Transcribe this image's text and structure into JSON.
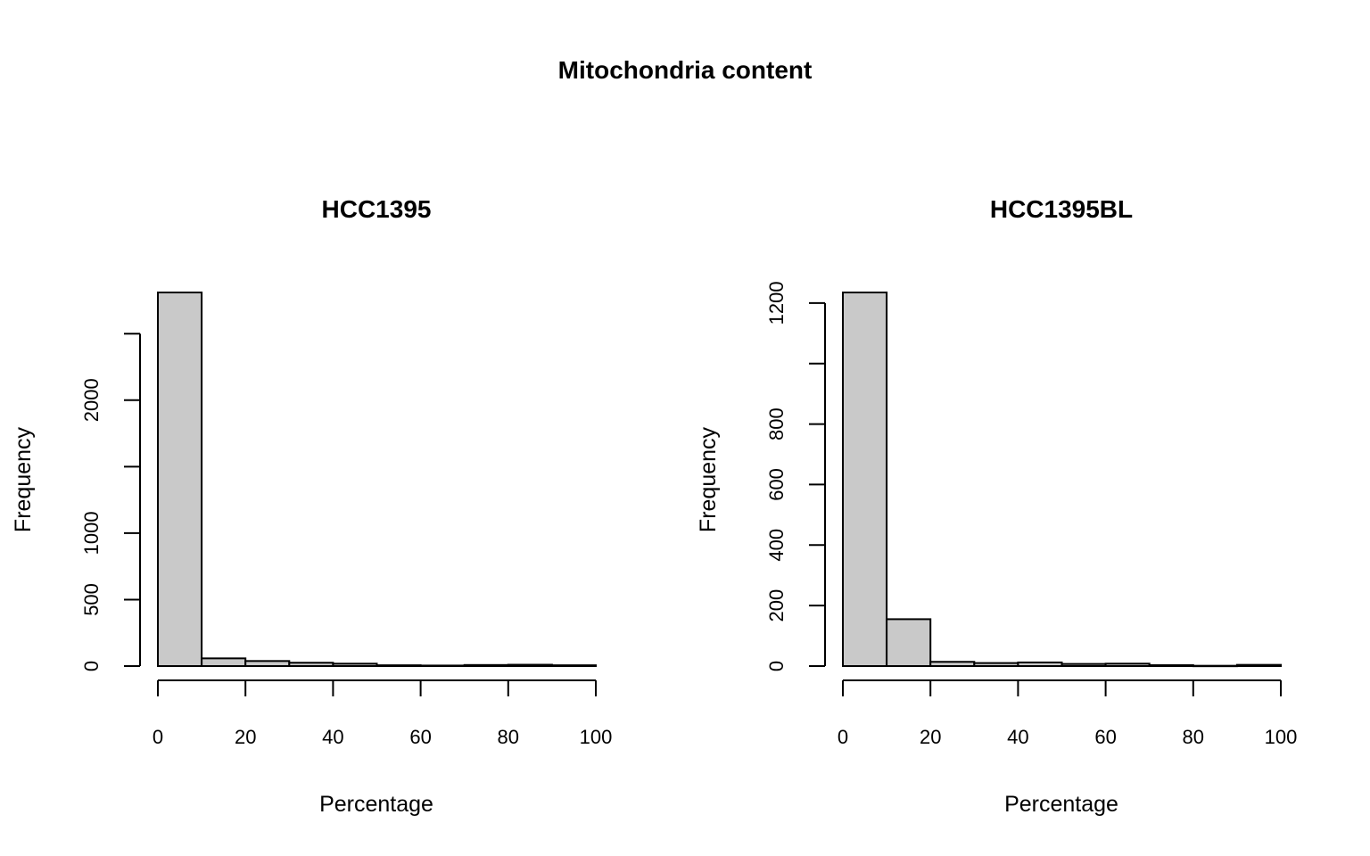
{
  "figure": {
    "title": "Mitochondria content"
  },
  "chart_data": [
    {
      "type": "bar",
      "title": "HCC1395",
      "xlabel": "Percentage",
      "ylabel": "Frequency",
      "bin_edges": [
        0,
        10,
        20,
        30,
        40,
        50,
        60,
        70,
        80,
        90,
        100
      ],
      "values": [
        2810,
        58,
        38,
        25,
        18,
        6,
        4,
        8,
        10,
        6
      ],
      "xlim": [
        0,
        100
      ],
      "ylim": [
        0,
        2810
      ],
      "x_ticks": [
        0,
        20,
        40,
        60,
        80,
        100
      ],
      "y_ticks": [
        0,
        500,
        1000,
        1500,
        2000,
        2500
      ],
      "y_tick_labels": [
        "0",
        "500",
        "1000",
        "",
        "2000",
        ""
      ],
      "grid": false,
      "bar_color": "#c9c9c9"
    },
    {
      "type": "bar",
      "title": "HCC1395BL",
      "xlabel": "Percentage",
      "ylabel": "Frequency",
      "bin_edges": [
        0,
        10,
        20,
        30,
        40,
        50,
        60,
        70,
        80,
        90,
        100
      ],
      "values": [
        1235,
        155,
        14,
        10,
        12,
        7,
        8,
        3,
        1,
        4
      ],
      "xlim": [
        0,
        100
      ],
      "ylim": [
        0,
        1235
      ],
      "x_ticks": [
        0,
        20,
        40,
        60,
        80,
        100
      ],
      "y_ticks": [
        0,
        200,
        400,
        600,
        800,
        1000,
        1200
      ],
      "y_tick_labels": [
        "0",
        "200",
        "400",
        "600",
        "800",
        "",
        "1200"
      ],
      "grid": false,
      "bar_color": "#c9c9c9"
    }
  ]
}
